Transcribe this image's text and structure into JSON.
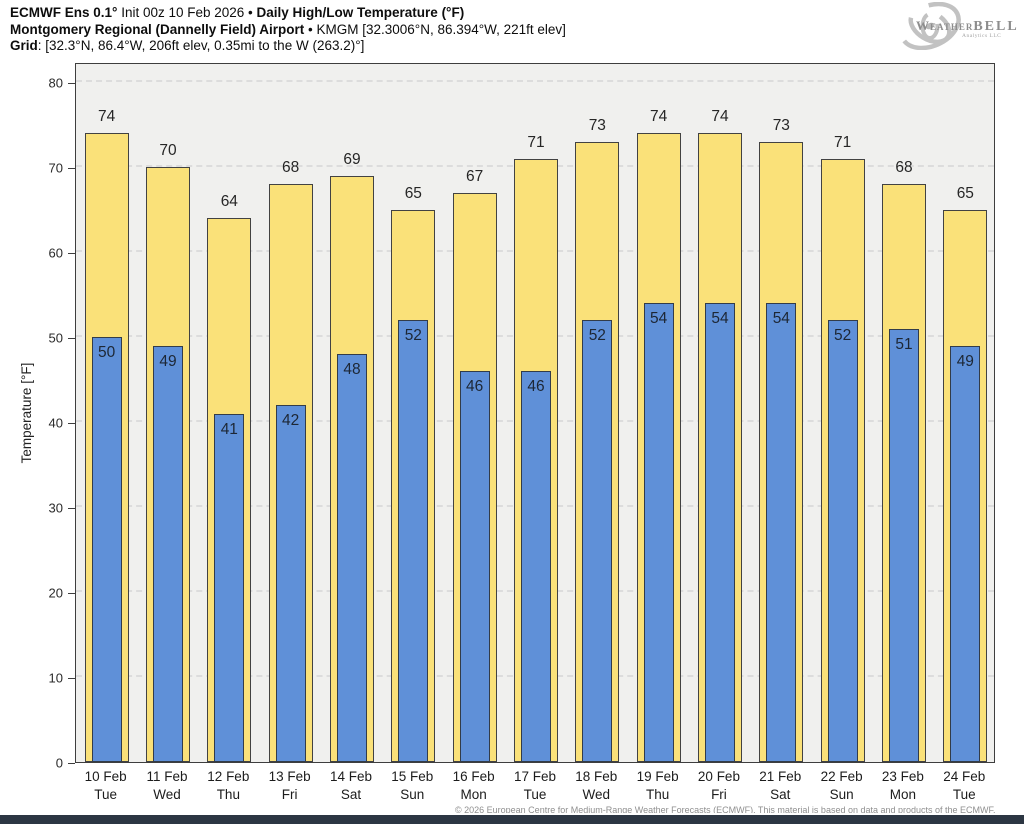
{
  "header": {
    "line1": {
      "model": "ECMWF Ens 0.1°",
      "init": "Init 00z 10 Feb 2026 •",
      "product": "Daily High/Low Temperature (°F)"
    },
    "line2": {
      "station": "Montgomery Regional (Dannelly Field) Airport",
      "meta": "• KMGM [32.3006°N, 86.394°W, 221ft elev]"
    },
    "line3": {
      "label": "Grid",
      "value": ": [32.3°N, 86.4°W, 206ft elev, 0.35mi to the W (263.2)°]"
    }
  },
  "logo": {
    "brand_main": "Weather",
    "brand_bell": "BELL",
    "subtitle": "Analytics LLC"
  },
  "chart_data": {
    "type": "bar",
    "title": "ECMWF Ens 0.1° Init 00z 10 Feb 2026 • Daily High/Low Temperature (°F)",
    "subtitle": "Montgomery Regional (Dannelly Field) Airport • KMGM",
    "xlabel": "",
    "ylabel": "Temperature [°F]",
    "ylim": [
      0,
      80
    ],
    "yticks": [
      0,
      10,
      20,
      30,
      40,
      50,
      60,
      70,
      80
    ],
    "grid": "horizontal-dashed",
    "legend_position": "none",
    "categories": [
      "10 Feb",
      "11 Feb",
      "12 Feb",
      "13 Feb",
      "14 Feb",
      "15 Feb",
      "16 Feb",
      "17 Feb",
      "18 Feb",
      "19 Feb",
      "20 Feb",
      "21 Feb",
      "22 Feb",
      "23 Feb",
      "24 Feb"
    ],
    "weekdays": [
      "Tue",
      "Wed",
      "Thu",
      "Fri",
      "Sat",
      "Sun",
      "Mon",
      "Tue",
      "Wed",
      "Thu",
      "Fri",
      "Sat",
      "Sun",
      "Mon",
      "Tue"
    ],
    "series": [
      {
        "name": "Daily High",
        "color": "#fae179",
        "values": [
          74,
          70,
          64,
          68,
          69,
          65,
          67,
          71,
          73,
          74,
          74,
          73,
          71,
          68,
          65
        ]
      },
      {
        "name": "Daily Low",
        "color": "#5f90d8",
        "values": [
          50,
          49,
          41,
          42,
          48,
          52,
          46,
          46,
          52,
          54,
          54,
          54,
          52,
          51,
          49
        ]
      }
    ]
  },
  "footer": {
    "attribution": "© 2026 European Centre for Medium-Range Weather Forecasts (ECMWF). This material is based on data and products of the ECMWF."
  },
  "colors": {
    "high_bar": "#fae179",
    "low_bar": "#5f90d8",
    "bar_outline": "#424242",
    "plot_background": "#f0f0ee",
    "gridline": "#dcdcdc",
    "bottom_bar": "#2c3643"
  }
}
